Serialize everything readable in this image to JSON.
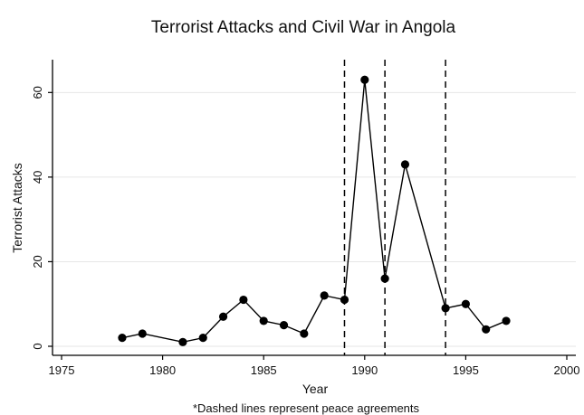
{
  "chart_data": {
    "type": "line",
    "title": "Terrorist Attacks and Civil War in Angola",
    "xlabel": "Year",
    "ylabel": "Terrorist Attacks",
    "note": "*Dashed lines represent peace agreements",
    "xlim": [
      1975,
      2000
    ],
    "ylim": [
      0,
      64
    ],
    "x_ticks": [
      1975,
      1980,
      1985,
      1990,
      1995,
      2000
    ],
    "y_ticks": [
      0,
      20,
      40,
      60
    ],
    "grid": true,
    "legend": "none",
    "reference_lines": [
      1989,
      1991,
      1994
    ],
    "series": [
      {
        "x": [
          1978,
          1979,
          1981,
          1982,
          1983,
          1984,
          1985,
          1986,
          1987,
          1988,
          1989,
          1990,
          1991,
          1992,
          1994,
          1995,
          1996,
          1997
        ],
        "y": [
          2,
          3,
          1,
          2,
          7,
          11,
          6,
          5,
          3,
          12,
          11,
          63,
          16,
          43,
          9,
          10,
          4,
          6
        ]
      }
    ],
    "colors": {
      "line": "#000000",
      "grid": "#e6e6e6",
      "ref_line": "#000000"
    }
  }
}
